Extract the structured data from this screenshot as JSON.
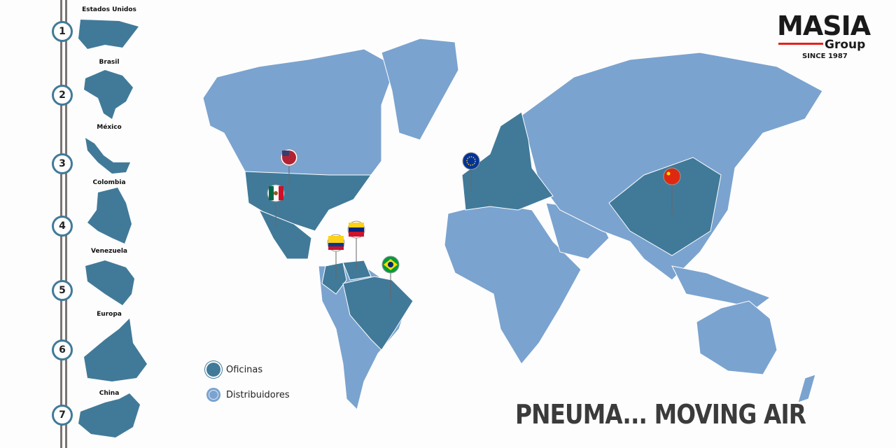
{
  "brand": {
    "name": "MASIA",
    "sub": "Group",
    "since": "SINCE 1987",
    "accent": "#e2231a"
  },
  "slogan": "PNEUMA... MOVING AIR",
  "colors": {
    "offices": "#417a99",
    "distributors": "#7ba3cf"
  },
  "legend": [
    {
      "label": "Oficinas"
    },
    {
      "label": "Distribuidores"
    }
  ],
  "locations": [
    {
      "number": "1",
      "name": "Estados Unidos",
      "flag": "us-flag-icon"
    },
    {
      "number": "2",
      "name": "Brasil",
      "flag": "brazil-flag-icon"
    },
    {
      "number": "3",
      "name": "México",
      "flag": "mexico-flag-icon"
    },
    {
      "number": "4",
      "name": "Colombia",
      "flag": "colombia-flag-icon"
    },
    {
      "number": "5",
      "name": "Venezuela",
      "flag": "venezuela-flag-icon"
    },
    {
      "number": "6",
      "name": "Europa",
      "flag": "eu-flag-icon"
    },
    {
      "number": "7",
      "name": "China",
      "flag": "china-flag-icon"
    }
  ]
}
